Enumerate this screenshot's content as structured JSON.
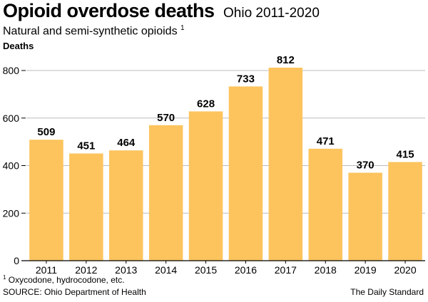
{
  "title": "Opioid overdose deaths",
  "subtitle_inline": "Ohio 2011-2020",
  "subtitle": "Natural and semi-synthetic opioids",
  "subtitle_superscript": "1",
  "footnote_marker": "1",
  "footnote": "Oxycodone, hydrocodone, etc.",
  "source": "SOURCE: Ohio Department of Health",
  "credit": "The Daily Standard",
  "colors": {
    "bar": "#FDC45E",
    "grid": "#BBBBBB",
    "axis": "#000000"
  },
  "chart_data": {
    "type": "bar",
    "title": "Opioid overdose deaths",
    "subtitle": "Ohio 2011-2020",
    "ylabel": "Deaths",
    "xlabel": "",
    "categories": [
      "2011",
      "2012",
      "2013",
      "2014",
      "2015",
      "2016",
      "2017",
      "2018",
      "2019",
      "2020"
    ],
    "values": [
      509,
      451,
      464,
      570,
      628,
      733,
      812,
      471,
      370,
      415
    ],
    "ylim": [
      0,
      800
    ],
    "yticks": [
      0,
      200,
      400,
      600,
      800
    ],
    "grid": true,
    "data_labels": true
  }
}
